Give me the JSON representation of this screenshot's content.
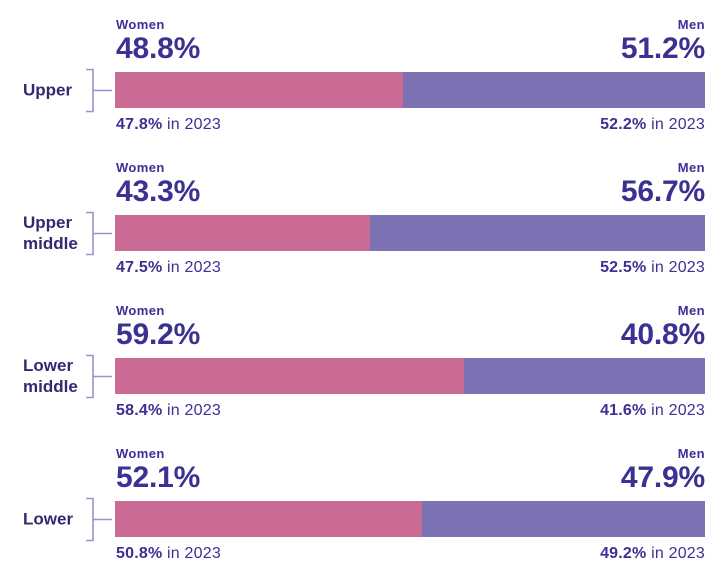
{
  "colors": {
    "women": "#c96b94",
    "men": "#7b73b3",
    "text": "#3a3192",
    "category": "#2f2a72",
    "bracket": "#9a92cc",
    "background": "#ffffff"
  },
  "labels": {
    "in_2023_suffix": " in 2023"
  },
  "chart_data": {
    "type": "bar",
    "orientation": "horizontal-stacked",
    "title": "",
    "categories": [
      "Upper",
      "Upper middle",
      "Lower middle",
      "Lower"
    ],
    "series": [
      {
        "name": "Women",
        "values": [
          48.8,
          43.3,
          59.2,
          52.1
        ]
      },
      {
        "name": "Men",
        "values": [
          51.2,
          56.7,
          40.8,
          47.9
        ]
      },
      {
        "name": "Women in 2023",
        "values": [
          47.8,
          47.5,
          58.4,
          50.8
        ]
      },
      {
        "name": "Men in 2023",
        "values": [
          52.2,
          52.5,
          41.6,
          49.2
        ]
      }
    ],
    "xlim": [
      0,
      100
    ],
    "grid": false,
    "legend_position": "labels-above-each-bar",
    "value_unit": "%"
  },
  "rows": [
    {
      "category": "Upper",
      "women_label": "Women",
      "men_label": "Men",
      "women_pct": "48.8%",
      "men_pct": "51.2%",
      "women_value": 48.8,
      "men_value": 51.2,
      "women_2023_pct": "47.8%",
      "men_2023_pct": "52.2%"
    },
    {
      "category": "Upper\nmiddle",
      "women_label": "Women",
      "men_label": "Men",
      "women_pct": "43.3%",
      "men_pct": "56.7%",
      "women_value": 43.3,
      "men_value": 56.7,
      "women_2023_pct": "47.5%",
      "men_2023_pct": "52.5%"
    },
    {
      "category": "Lower\nmiddle",
      "women_label": "Women",
      "men_label": "Men",
      "women_pct": "59.2%",
      "men_pct": "40.8%",
      "women_value": 59.2,
      "men_value": 40.8,
      "women_2023_pct": "58.4%",
      "men_2023_pct": "41.6%"
    },
    {
      "category": "Lower",
      "women_label": "Women",
      "men_label": "Men",
      "women_pct": "52.1%",
      "men_pct": "47.9%",
      "women_value": 52.1,
      "men_value": 47.9,
      "women_2023_pct": "50.8%",
      "men_2023_pct": "49.2%"
    }
  ]
}
